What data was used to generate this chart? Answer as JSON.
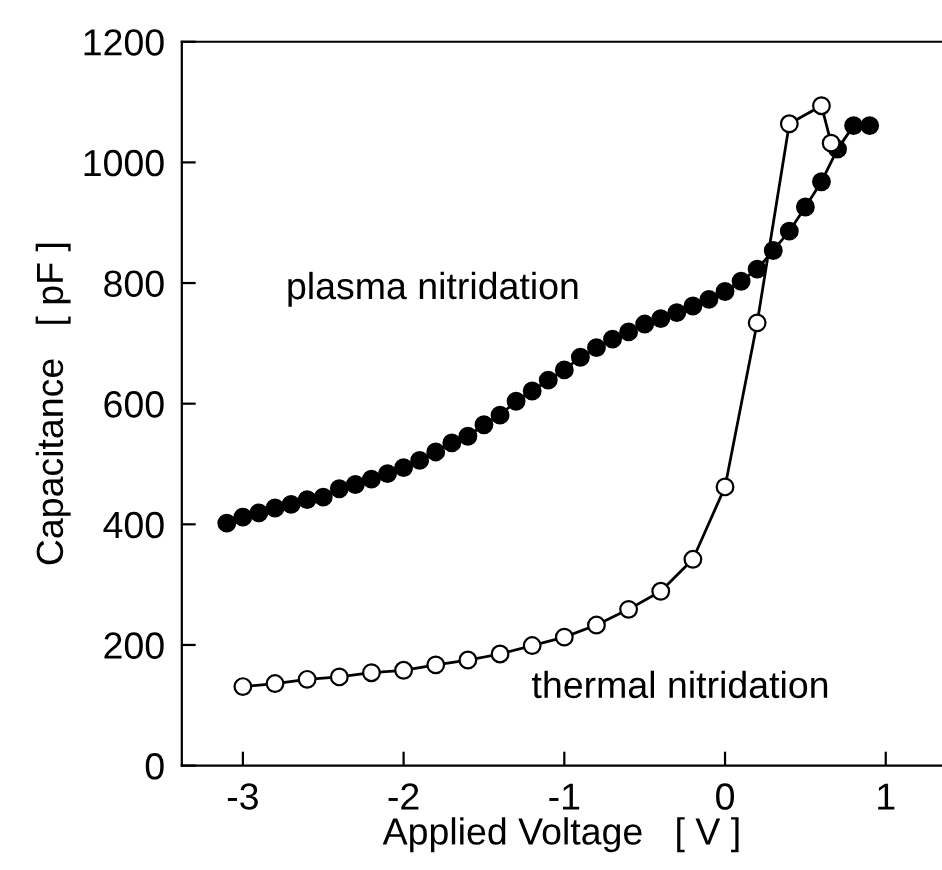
{
  "chart_data": {
    "type": "line",
    "xlabel": "Applied Voltage   [ V ]",
    "ylabel": "Capacitance   [ pF ]",
    "xlim": [
      -3.38,
      1.35
    ],
    "ylim": [
      0,
      1200
    ],
    "xticks": [
      -3,
      -2,
      -1,
      0,
      1
    ],
    "yticks": [
      0,
      200,
      400,
      600,
      800,
      1000,
      1200
    ],
    "grid": false,
    "legend": false,
    "marker": "circle",
    "line_style": "solid",
    "series": [
      {
        "name": "plasma nitridation",
        "color": "#000000",
        "x": [
          -3.1,
          -3.0,
          -2.9,
          -2.8,
          -2.7,
          -2.6,
          -2.5,
          -2.4,
          -2.3,
          -2.2,
          -2.1,
          -2.0,
          -1.9,
          -1.8,
          -1.7,
          -1.6,
          -1.5,
          -1.4,
          -1.3,
          -1.2,
          -1.1,
          -1.0,
          -0.9,
          -0.8,
          -0.7,
          -0.6,
          -0.5,
          -0.4,
          -0.3,
          -0.2,
          -0.1,
          0.0,
          0.1,
          0.2,
          0.3,
          0.4,
          0.5,
          0.6,
          0.7,
          0.8,
          0.9
        ],
        "values": [
          402,
          412,
          419,
          427,
          433,
          441,
          445,
          459,
          466,
          475,
          484,
          494,
          506,
          520,
          535,
          546,
          565,
          581,
          604,
          621,
          639,
          656,
          677,
          693,
          707,
          719,
          732,
          741,
          751,
          762,
          773,
          786,
          803,
          823,
          854,
          886,
          926,
          968,
          1022,
          1061,
          1061
        ]
      },
      {
        "name": "thermal nitridation",
        "color": "#000000",
        "x": [
          -3.0,
          -2.8,
          -2.6,
          -2.4,
          -2.2,
          -2.0,
          -1.8,
          -1.6,
          -1.4,
          -1.2,
          -1.0,
          -0.8,
          -0.6,
          -0.4,
          -0.2,
          0.0,
          0.2,
          0.4,
          0.6,
          0.66
        ],
        "values": [
          131,
          136,
          143,
          147,
          154,
          158,
          167,
          175,
          185,
          199,
          213,
          233,
          259,
          289,
          342,
          462,
          734,
          1064,
          1094,
          1032
        ]
      }
    ]
  }
}
